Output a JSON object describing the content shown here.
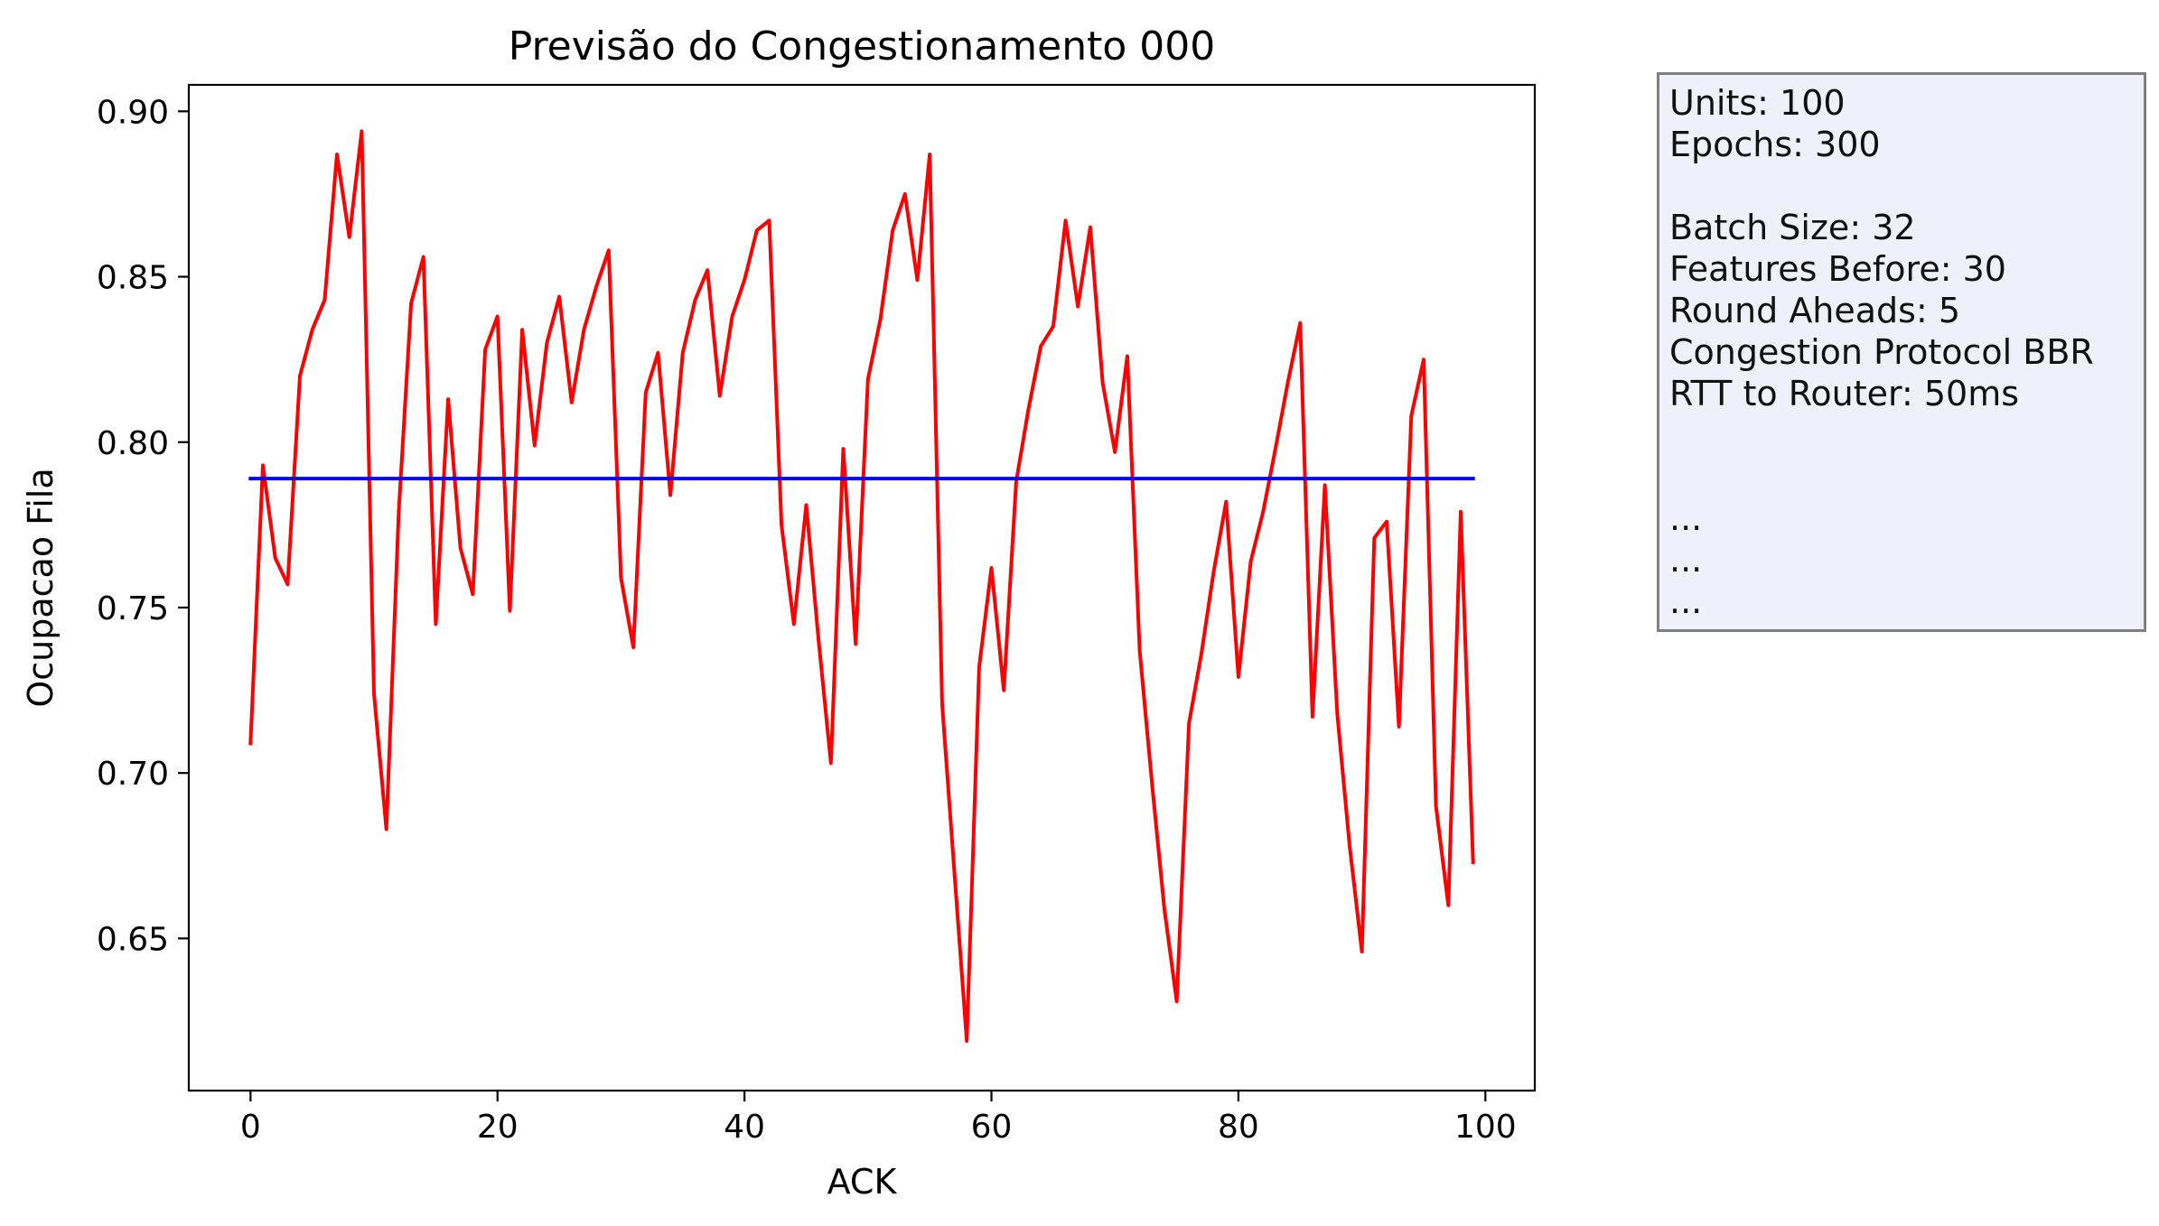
{
  "colors": {
    "prediction": "#ff0000",
    "mean": "#0000ff",
    "info_background": "#f0f0fa",
    "info_border": "#7f7f7f"
  },
  "info_box": {
    "lines": [
      "Units: 100",
      "Epochs: 300",
      "",
      "Batch Size: 32",
      "Features Before: 30",
      "Round Aheads: 5",
      "Congestion Protocol BBR",
      "RTT to Router: 50ms",
      "",
      "",
      "...",
      "...",
      "..."
    ]
  },
  "chart_data": {
    "type": "line",
    "title": "Previsão do Congestionamento 000",
    "xlabel": "ACK",
    "ylabel": "Ocupacao Fila",
    "xlim": [
      -5,
      104
    ],
    "ylim": [
      0.604,
      0.908
    ],
    "xticks": [
      0,
      20,
      40,
      60,
      80,
      100
    ],
    "xtick_labels": [
      "0",
      "20",
      "40",
      "60",
      "80",
      "100"
    ],
    "yticks": [
      0.65,
      0.7,
      0.75,
      0.8,
      0.85,
      0.9
    ],
    "ytick_labels": [
      "0.65",
      "0.70",
      "0.75",
      "0.80",
      "0.85",
      "0.90"
    ],
    "grid": false,
    "series": [
      {
        "color": "#ff0000",
        "x": [
          0,
          1,
          2,
          3,
          4,
          5,
          6,
          7,
          8,
          9,
          10,
          11,
          12,
          13,
          14,
          15,
          16,
          17,
          18,
          19,
          20,
          21,
          22,
          23,
          24,
          25,
          26,
          27,
          28,
          29,
          30,
          31,
          32,
          33,
          34,
          35,
          36,
          37,
          38,
          39,
          40,
          41,
          42,
          43,
          44,
          45,
          46,
          47,
          48,
          49,
          50,
          51,
          52,
          53,
          54,
          55,
          56,
          57,
          58,
          59,
          60,
          61,
          62,
          63,
          64,
          65,
          66,
          67,
          68,
          69,
          70,
          71,
          72,
          73,
          74,
          75,
          76,
          77,
          78,
          79,
          80,
          81,
          82,
          83,
          84,
          85,
          86,
          87,
          88,
          89,
          90,
          91,
          92,
          93,
          94,
          95,
          96,
          97,
          98,
          99
        ],
        "values": [
          0.709,
          0.793,
          0.765,
          0.757,
          0.82,
          0.834,
          0.843,
          0.887,
          0.862,
          0.894,
          0.724,
          0.683,
          0.779,
          0.842,
          0.856,
          0.745,
          0.813,
          0.768,
          0.754,
          0.828,
          0.838,
          0.749,
          0.834,
          0.799,
          0.83,
          0.844,
          0.812,
          0.834,
          0.847,
          0.858,
          0.759,
          0.738,
          0.815,
          0.827,
          0.784,
          0.827,
          0.843,
          0.852,
          0.814,
          0.838,
          0.849,
          0.864,
          0.867,
          0.775,
          0.745,
          0.781,
          0.74,
          0.703,
          0.798,
          0.739,
          0.819,
          0.837,
          0.864,
          0.875,
          0.849,
          0.887,
          0.721,
          0.67,
          0.619,
          0.732,
          0.762,
          0.725,
          0.788,
          0.81,
          0.829,
          0.835,
          0.867,
          0.841,
          0.865,
          0.818,
          0.797,
          0.826,
          0.737,
          0.697,
          0.659,
          0.631,
          0.715,
          0.736,
          0.761,
          0.782,
          0.729,
          0.764,
          0.779,
          0.798,
          0.818,
          0.836,
          0.717,
          0.787,
          0.718,
          0.678,
          0.646,
          0.771,
          0.776,
          0.714,
          0.808,
          0.825,
          0.69,
          0.66,
          0.779,
          0.673
        ]
      },
      {
        "color": "#0000ff",
        "x": [
          0,
          99
        ],
        "values": [
          0.789,
          0.789
        ]
      }
    ]
  }
}
